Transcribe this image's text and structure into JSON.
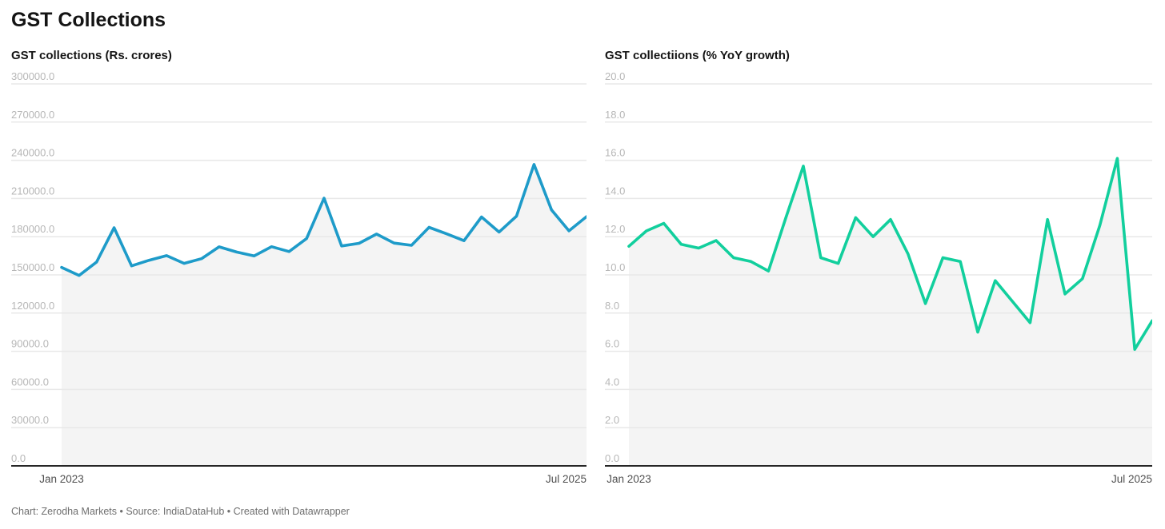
{
  "page": {
    "title": "GST Collections",
    "footer": "Chart: Zerodha Markets • Source: IndiaDataHub • Created with Datawrapper"
  },
  "chart_data": [
    {
      "type": "line",
      "title": "GST collections (Rs. crores)",
      "x": [
        "Jan 2023",
        "Feb 2023",
        "Mar 2023",
        "Apr 2023",
        "May 2023",
        "Jun 2023",
        "Jul 2023",
        "Aug 2023",
        "Sep 2023",
        "Oct 2023",
        "Nov 2023",
        "Dec 2023",
        "Jan 2024",
        "Feb 2024",
        "Mar 2024",
        "Apr 2024",
        "May 2024",
        "Jun 2024",
        "Jul 2024",
        "Aug 2024",
        "Sep 2024",
        "Oct 2024",
        "Nov 2024",
        "Dec 2024",
        "Jan 2025",
        "Feb 2025",
        "Mar 2025",
        "Apr 2025",
        "May 2025",
        "Jun 2025",
        "Jul 2025"
      ],
      "values": [
        155922,
        149577,
        160122,
        187035,
        157090,
        161497,
        165105,
        159069,
        162712,
        172003,
        167929,
        164882,
        172129,
        168337,
        178484,
        210267,
        172739,
        174813,
        182075,
        174962,
        173240,
        187346,
        182269,
        176857,
        195506,
        183646,
        196141,
        236716,
        201050,
        184597,
        195735
      ],
      "ylim": [
        0,
        300000
      ],
      "y_ticks": [
        "300000.0",
        "270000.0",
        "240000.0",
        "210000.0",
        "180000.0",
        "150000.0",
        "120000.0",
        "90000.0",
        "60000.0",
        "30000.0",
        "0.0"
      ],
      "x_tick_labels": [
        "Jan 2023",
        "Jul 2025"
      ],
      "line_color": "#1e9bc9",
      "grid": true,
      "area_fill": true,
      "legend": "none"
    },
    {
      "type": "line",
      "title": "GST collectiions (% YoY growth)",
      "x": [
        "Jan 2023",
        "Feb 2023",
        "Mar 2023",
        "Apr 2023",
        "May 2023",
        "Jun 2023",
        "Jul 2023",
        "Aug 2023",
        "Sep 2023",
        "Oct 2023",
        "Nov 2023",
        "Dec 2023",
        "Jan 2024",
        "Feb 2024",
        "Mar 2024",
        "Apr 2024",
        "May 2024",
        "Jun 2024",
        "Jul 2024",
        "Aug 2024",
        "Sep 2024",
        "Oct 2024",
        "Nov 2024",
        "Dec 2024",
        "Jan 2025",
        "Feb 2025",
        "Mar 2025",
        "Apr 2025",
        "May 2025",
        "Jun 2025",
        "Jul 2025"
      ],
      "values": [
        11.5,
        12.3,
        12.7,
        11.6,
        11.4,
        11.8,
        10.9,
        10.7,
        10.2,
        13.0,
        15.7,
        10.9,
        10.6,
        13.0,
        12.0,
        12.9,
        11.1,
        8.5,
        10.9,
        10.7,
        7.0,
        9.7,
        8.6,
        7.5,
        12.9,
        9.0,
        9.8,
        12.6,
        16.1,
        6.1,
        7.6
      ],
      "ylim": [
        0,
        20
      ],
      "y_ticks": [
        "20.0",
        "18.0",
        "16.0",
        "14.0",
        "12.0",
        "10.0",
        "8.0",
        "6.0",
        "4.0",
        "2.0",
        "0.0"
      ],
      "x_tick_labels": [
        "Jan 2023",
        "Jul 2025"
      ],
      "line_color": "#12cf9d",
      "grid": true,
      "area_fill": true,
      "legend": "none"
    }
  ],
  "style": {
    "grid_color": "#e8e8e8",
    "baseline_color": "#262626",
    "area_fill_color": "rgba(0,0,0,0.042)",
    "ytick_color": "#b7b7b7",
    "xtick_color": "#4f4f4f"
  }
}
